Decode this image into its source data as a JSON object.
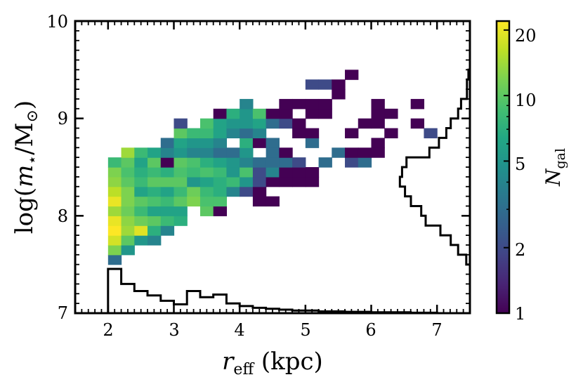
{
  "chart_data": {
    "type": "heatmap",
    "title": "",
    "xlabel": "r_eff (kpc)",
    "ylabel": "log(m_⋆/M_⊙)",
    "xlim": [
      1.5,
      7.5
    ],
    "ylim": [
      7,
      10
    ],
    "xticks": [
      2,
      3,
      4,
      5,
      6,
      7
    ],
    "yticks": [
      7,
      8,
      9,
      10
    ],
    "x_tick_labels": [
      "2",
      "3",
      "4",
      "5",
      "6",
      "7"
    ],
    "y_tick_labels": [
      "7",
      "8",
      "9",
      "10"
    ],
    "bin_width_x": 0.2,
    "bin_width_y": 0.1,
    "colormap": "viridis",
    "color_scale": "log",
    "colorbar": {
      "label": "N_gal",
      "range": [
        1,
        22
      ],
      "ticks": [
        1,
        2,
        5,
        10,
        20
      ],
      "tick_labels": [
        "1",
        "2",
        "5",
        "10",
        "20"
      ]
    },
    "cells": [
      [
        2.0,
        7.5,
        3
      ],
      [
        2.0,
        7.6,
        12
      ],
      [
        2.0,
        7.7,
        18
      ],
      [
        2.0,
        7.8,
        22
      ],
      [
        2.0,
        7.9,
        20
      ],
      [
        2.0,
        8.0,
        14
      ],
      [
        2.0,
        8.1,
        20
      ],
      [
        2.0,
        8.2,
        16
      ],
      [
        2.0,
        8.3,
        13
      ],
      [
        2.0,
        8.4,
        12
      ],
      [
        2.0,
        8.5,
        8
      ],
      [
        2.2,
        7.6,
        5
      ],
      [
        2.2,
        7.7,
        10
      ],
      [
        2.2,
        7.8,
        14
      ],
      [
        2.2,
        7.9,
        13
      ],
      [
        2.2,
        8.0,
        11
      ],
      [
        2.2,
        8.1,
        12
      ],
      [
        2.2,
        8.2,
        12
      ],
      [
        2.2,
        8.3,
        10
      ],
      [
        2.2,
        8.4,
        9
      ],
      [
        2.2,
        8.5,
        10
      ],
      [
        2.2,
        8.6,
        14
      ],
      [
        2.4,
        7.7,
        5
      ],
      [
        2.4,
        7.8,
        19
      ],
      [
        2.4,
        7.9,
        11
      ],
      [
        2.4,
        8.0,
        8
      ],
      [
        2.4,
        8.1,
        10
      ],
      [
        2.4,
        8.2,
        6
      ],
      [
        2.4,
        8.3,
        8
      ],
      [
        2.4,
        8.4,
        7
      ],
      [
        2.4,
        8.5,
        6
      ],
      [
        2.4,
        8.6,
        8
      ],
      [
        2.6,
        7.7,
        4
      ],
      [
        2.6,
        7.8,
        7
      ],
      [
        2.6,
        7.9,
        10
      ],
      [
        2.6,
        8.0,
        6
      ],
      [
        2.6,
        8.1,
        9
      ],
      [
        2.6,
        8.2,
        7
      ],
      [
        2.6,
        8.3,
        10
      ],
      [
        2.6,
        8.4,
        8
      ],
      [
        2.6,
        8.5,
        10
      ],
      [
        2.6,
        8.6,
        6
      ],
      [
        2.8,
        7.8,
        4
      ],
      [
        2.8,
        7.9,
        8
      ],
      [
        2.8,
        8.0,
        6
      ],
      [
        2.8,
        8.1,
        8
      ],
      [
        2.8,
        8.2,
        6
      ],
      [
        2.8,
        8.3,
        10
      ],
      [
        2.8,
        8.4,
        7
      ],
      [
        2.8,
        8.5,
        1
      ],
      [
        2.8,
        8.6,
        4
      ],
      [
        2.8,
        8.7,
        3
      ],
      [
        3.0,
        7.9,
        7
      ],
      [
        3.0,
        8.0,
        6
      ],
      [
        3.0,
        8.1,
        10
      ],
      [
        3.0,
        8.2,
        8
      ],
      [
        3.0,
        8.3,
        10
      ],
      [
        3.0,
        8.4,
        9
      ],
      [
        3.0,
        8.5,
        10
      ],
      [
        3.0,
        8.6,
        5
      ],
      [
        3.0,
        8.7,
        6
      ],
      [
        3.0,
        8.8,
        10
      ],
      [
        3.0,
        8.9,
        2
      ],
      [
        3.2,
        8.1,
        12
      ],
      [
        3.2,
        8.2,
        11
      ],
      [
        3.2,
        8.3,
        5
      ],
      [
        3.2,
        8.4,
        8
      ],
      [
        3.2,
        8.5,
        9
      ],
      [
        3.2,
        8.6,
        4
      ],
      [
        3.2,
        8.7,
        5
      ],
      [
        3.2,
        8.8,
        8
      ],
      [
        3.4,
        8.0,
        10
      ],
      [
        3.4,
        8.1,
        9
      ],
      [
        3.4,
        8.2,
        8
      ],
      [
        3.4,
        8.3,
        6
      ],
      [
        3.4,
        8.4,
        9
      ],
      [
        3.4,
        8.5,
        7
      ],
      [
        3.4,
        8.6,
        4
      ],
      [
        3.4,
        8.7,
        5
      ],
      [
        3.4,
        8.8,
        8
      ],
      [
        3.4,
        8.9,
        9
      ],
      [
        3.6,
        8.0,
        1
      ],
      [
        3.6,
        8.1,
        9
      ],
      [
        3.6,
        8.2,
        7
      ],
      [
        3.6,
        8.3,
        7
      ],
      [
        3.6,
        8.4,
        8
      ],
      [
        3.6,
        8.5,
        6
      ],
      [
        3.6,
        8.6,
        3
      ],
      [
        3.6,
        8.7,
        4
      ],
      [
        3.6,
        8.8,
        6
      ],
      [
        3.6,
        8.9,
        6
      ],
      [
        3.6,
        9.0,
        1
      ],
      [
        3.8,
        8.2,
        4
      ],
      [
        3.8,
        8.3,
        8
      ],
      [
        3.8,
        8.4,
        5
      ],
      [
        3.8,
        8.5,
        5
      ],
      [
        3.8,
        8.6,
        3
      ],
      [
        3.8,
        8.8,
        4
      ],
      [
        3.8,
        8.9,
        5
      ],
      [
        3.8,
        9.0,
        7
      ],
      [
        4.0,
        8.2,
        2
      ],
      [
        4.0,
        8.3,
        5
      ],
      [
        4.0,
        8.4,
        9
      ],
      [
        4.0,
        8.5,
        4
      ],
      [
        4.0,
        8.6,
        5
      ],
      [
        4.0,
        8.7,
        7
      ],
      [
        4.0,
        8.8,
        3
      ],
      [
        4.0,
        8.9,
        5
      ],
      [
        4.0,
        9.0,
        5
      ],
      [
        4.0,
        9.1,
        4
      ],
      [
        4.2,
        8.1,
        1
      ],
      [
        4.2,
        8.2,
        1
      ],
      [
        4.2,
        8.3,
        2
      ],
      [
        4.2,
        8.4,
        2
      ],
      [
        4.2,
        8.5,
        3
      ],
      [
        4.2,
        8.7,
        1
      ],
      [
        4.2,
        8.8,
        4
      ],
      [
        4.2,
        8.9,
        6
      ],
      [
        4.2,
        9.0,
        9
      ],
      [
        4.4,
        8.1,
        1
      ],
      [
        4.4,
        8.3,
        1
      ],
      [
        4.4,
        8.4,
        4
      ],
      [
        4.4,
        8.5,
        3
      ],
      [
        4.4,
        8.6,
        3
      ],
      [
        4.4,
        8.7,
        3
      ],
      [
        4.4,
        8.9,
        3
      ],
      [
        4.4,
        9.0,
        1
      ],
      [
        4.6,
        8.3,
        1
      ],
      [
        4.6,
        8.4,
        1
      ],
      [
        4.6,
        8.5,
        3
      ],
      [
        4.6,
        8.6,
        1
      ],
      [
        4.6,
        8.9,
        2
      ],
      [
        4.6,
        9.0,
        1
      ],
      [
        4.6,
        9.1,
        1
      ],
      [
        4.8,
        8.3,
        1
      ],
      [
        4.8,
        8.4,
        1
      ],
      [
        4.8,
        8.5,
        2
      ],
      [
        4.8,
        8.8,
        1
      ],
      [
        4.8,
        8.9,
        1
      ],
      [
        4.8,
        9.1,
        1
      ],
      [
        5.0,
        8.3,
        1
      ],
      [
        5.0,
        8.4,
        1
      ],
      [
        5.0,
        8.7,
        3
      ],
      [
        5.0,
        8.8,
        1
      ],
      [
        5.0,
        9.0,
        1
      ],
      [
        5.0,
        9.1,
        1
      ],
      [
        5.0,
        9.3,
        2
      ],
      [
        5.2,
        8.5,
        3
      ],
      [
        5.2,
        9.0,
        1
      ],
      [
        5.2,
        9.1,
        1
      ],
      [
        5.2,
        9.3,
        2
      ],
      [
        5.4,
        8.6,
        3
      ],
      [
        5.4,
        9.2,
        1
      ],
      [
        5.4,
        9.3,
        1
      ],
      [
        5.6,
        8.5,
        2
      ],
      [
        5.6,
        8.6,
        1
      ],
      [
        5.6,
        8.8,
        1
      ],
      [
        5.6,
        9.4,
        1
      ],
      [
        5.8,
        8.5,
        3
      ],
      [
        5.8,
        8.6,
        1
      ],
      [
        5.8,
        8.9,
        1
      ],
      [
        6.0,
        8.6,
        1
      ],
      [
        6.0,
        8.7,
        1
      ],
      [
        6.0,
        8.9,
        1
      ],
      [
        6.0,
        9.0,
        1
      ],
      [
        6.0,
        9.1,
        1
      ],
      [
        6.2,
        8.8,
        1
      ],
      [
        6.2,
        9.0,
        1
      ],
      [
        6.6,
        8.9,
        1
      ],
      [
        6.6,
        9.1,
        1
      ],
      [
        6.8,
        8.8,
        2
      ]
    ],
    "marginal_x_histogram": {
      "bins_x": [
        2.0,
        2.2,
        2.4,
        2.6,
        2.8,
        3.0,
        3.2,
        3.4,
        3.6,
        3.8,
        4.0,
        4.2,
        4.4,
        4.6,
        4.8,
        5.0,
        5.2,
        5.4,
        5.6,
        5.8,
        6.0,
        6.2,
        6.4,
        6.6,
        6.8,
        7.0,
        7.2
      ],
      "relative_heights": [
        1.0,
        0.66,
        0.5,
        0.4,
        0.28,
        0.2,
        0.5,
        0.36,
        0.42,
        0.22,
        0.16,
        0.12,
        0.1,
        0.08,
        0.06,
        0.06,
        0.04,
        0.04,
        0.03,
        0.03,
        0.02,
        0.02,
        0.02,
        0.01,
        0.01,
        0.0
      ]
    },
    "marginal_y_histogram": {
      "bins_y": [
        7.5,
        7.6,
        7.7,
        7.8,
        7.9,
        8.0,
        8.1,
        8.2,
        8.3,
        8.4,
        8.5,
        8.6,
        8.7,
        8.8,
        8.9,
        9.0,
        9.1,
        9.2,
        9.3,
        9.4,
        9.5
      ],
      "relative_widths": [
        0.05,
        0.16,
        0.26,
        0.4,
        0.6,
        0.66,
        0.8,
        0.88,
        0.95,
        0.92,
        0.86,
        0.55,
        0.42,
        0.32,
        0.26,
        0.16,
        0.12,
        0.04,
        0.04,
        0.02
      ]
    }
  }
}
